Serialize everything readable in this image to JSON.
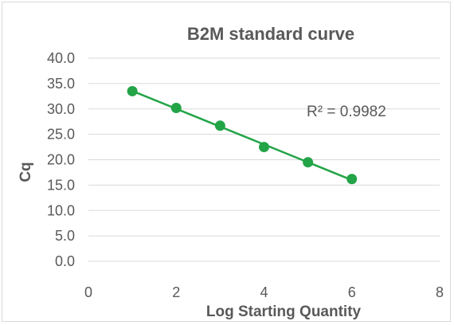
{
  "chart_data": {
    "type": "scatter",
    "title": "B2M standard curve",
    "xlabel": "Log  Starting  Quantity",
    "ylabel": "Cq",
    "xlim": [
      0,
      8
    ],
    "ylim": [
      0,
      40
    ],
    "x_ticks": [
      "0",
      "2",
      "4",
      "6",
      "8"
    ],
    "y_ticks": [
      "0.0",
      "5.0",
      "10.0",
      "15.0",
      "20.0",
      "25.0",
      "30.0",
      "35.0",
      "40.0"
    ],
    "grid": true,
    "series": [
      {
        "x": [
          1,
          2,
          3,
          4,
          5,
          6
        ],
        "y": [
          33.5,
          30.2,
          26.7,
          22.5,
          19.5,
          16.2
        ],
        "color": "#22a447"
      }
    ],
    "trendline": {
      "type": "linear",
      "color": "#22a447"
    },
    "annotation": "R² = 0.9982"
  }
}
